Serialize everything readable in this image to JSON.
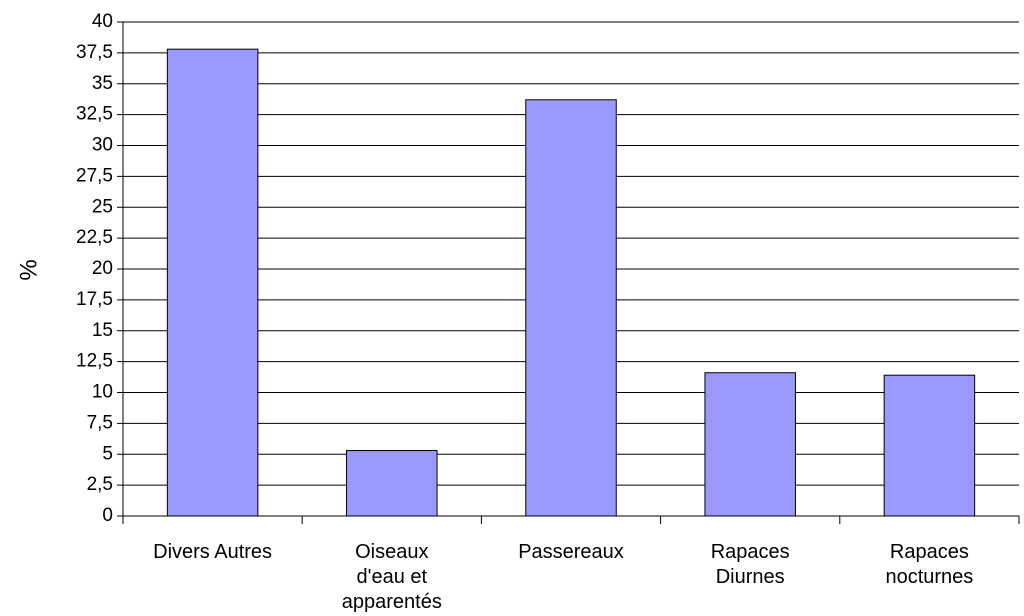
{
  "chart_data": {
    "type": "bar",
    "categories": [
      [
        "Divers Autres"
      ],
      [
        "Oiseaux",
        "d'eau et",
        "apparentés"
      ],
      [
        "Passereaux"
      ],
      [
        "Rapaces",
        "Diurnes"
      ],
      [
        "Rapaces",
        "nocturnes"
      ]
    ],
    "values": [
      37.8,
      5.3,
      33.7,
      11.6,
      11.4
    ],
    "ylabel": "%",
    "xlabel": "",
    "ylim": [
      0,
      40
    ],
    "yticks": [
      "0",
      "2,5",
      "5",
      "7,5",
      "10",
      "12,5",
      "15",
      "17,5",
      "20",
      "22,5",
      "25",
      "27,5",
      "30",
      "32,5",
      "35",
      "37,5",
      "40"
    ],
    "grid": true,
    "legend": "none",
    "colors": {
      "bar_fill": "#9999ff",
      "bar_stroke": "#000000",
      "grid": "#000000",
      "axis": "#000000"
    }
  }
}
